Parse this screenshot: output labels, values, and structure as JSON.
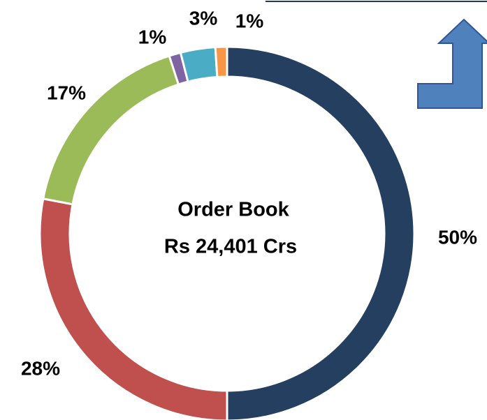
{
  "chart_data": {
    "type": "donut",
    "values": [
      50,
      28,
      17,
      1,
      3,
      1
    ],
    "value_labels": [
      "50%",
      "28%",
      "17%",
      "1%",
      "3%",
      "1%"
    ],
    "colors": [
      "#243f60",
      "#c0504d",
      "#9bbb59",
      "#8064a2",
      "#4bacc6",
      "#f79646"
    ],
    "center_text": [
      "Order Book",
      "Rs 24,401 Crs"
    ]
  }
}
